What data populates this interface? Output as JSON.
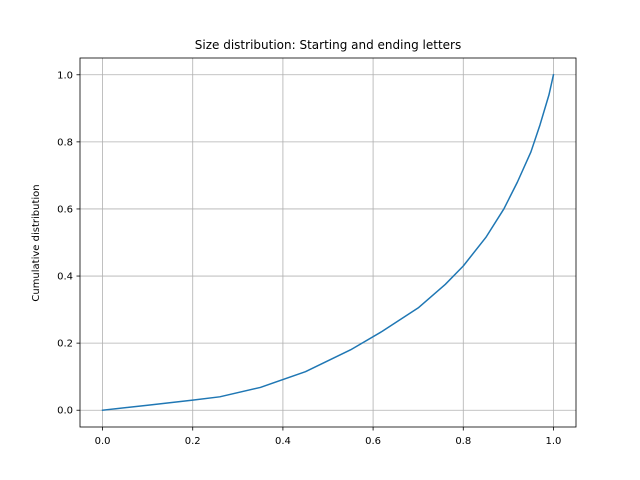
{
  "chart_data": {
    "type": "line",
    "title": "Size distribution: Starting and ending letters",
    "xlabel": "",
    "ylabel": "Cumulative distribution",
    "xlim": [
      -0.05,
      1.05
    ],
    "ylim": [
      -0.05,
      1.05
    ],
    "xticks": [
      0.0,
      0.2,
      0.4,
      0.6,
      0.8,
      1.0
    ],
    "yticks": [
      0.0,
      0.2,
      0.4,
      0.6,
      0.8,
      1.0
    ],
    "xtick_labels": [
      "0.0",
      "0.2",
      "0.4",
      "0.6",
      "0.8",
      "1.0"
    ],
    "ytick_labels": [
      "0.0",
      "0.2",
      "0.4",
      "0.6",
      "0.8",
      "1.0"
    ],
    "grid": true,
    "series": [
      {
        "color": "#1f77b4",
        "x": [
          0.0,
          0.1,
          0.2,
          0.26,
          0.35,
          0.45,
          0.55,
          0.62,
          0.7,
          0.76,
          0.8,
          0.85,
          0.89,
          0.92,
          0.95,
          0.97,
          0.99,
          1.0
        ],
        "y": [
          0.0,
          0.015,
          0.03,
          0.04,
          0.068,
          0.115,
          0.18,
          0.235,
          0.305,
          0.375,
          0.43,
          0.515,
          0.6,
          0.68,
          0.77,
          0.85,
          0.94,
          1.0
        ]
      }
    ]
  }
}
